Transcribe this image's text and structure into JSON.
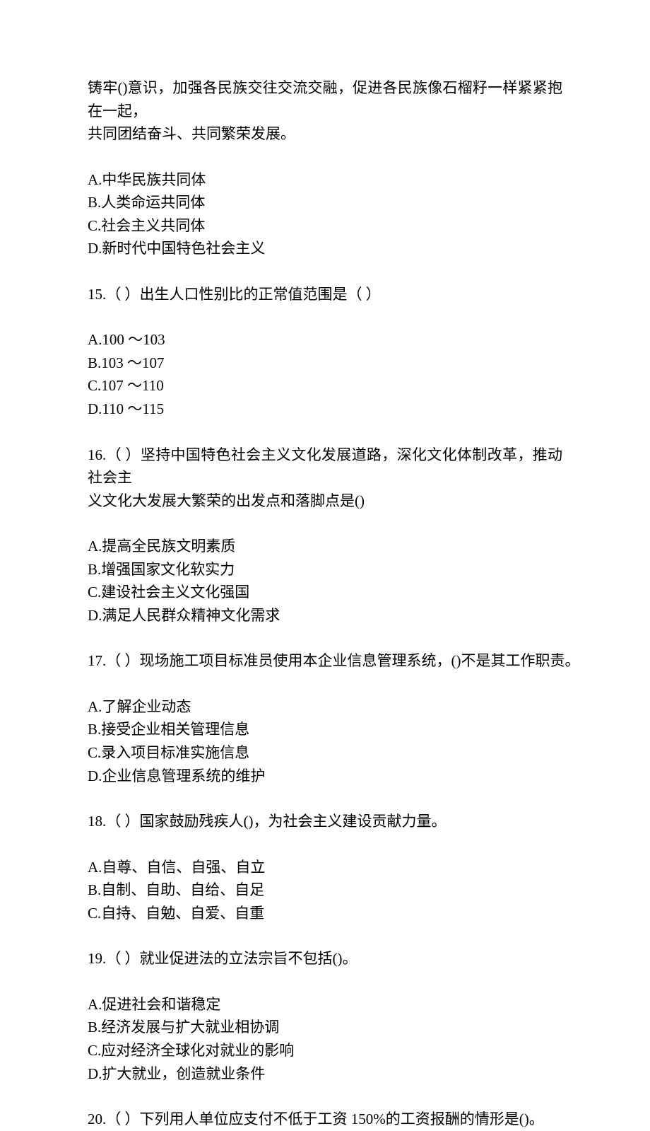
{
  "intro_lines": [
    "铸牢()意识，加强各民族交往交流交融，促进各民族像石榴籽一样紧紧抱在一起，",
    "共同团结奋斗、共同繁荣发展。"
  ],
  "intro_options": [
    "A.中华民族共同体",
    "B.人类命运共同体",
    "C.社会主义共同体",
    "D.新时代中国特色社会主义"
  ],
  "q15": {
    "text": "15.（ ）出生人口性别比的正常值范围是（ ）",
    "options": [
      "A.100 ～103",
      "B.103 ～107",
      "C.107 ～110",
      "D.110 ～115"
    ]
  },
  "q16": {
    "lines": [
      "16.（ ）坚持中国特色社会主义文化发展道路，深化文化体制改革，推动社会主",
      "义文化大发展大繁荣的出发点和落脚点是()"
    ],
    "options": [
      "A.提高全民族文明素质",
      "B.增强国家文化软实力",
      "C.建设社会主义文化强国",
      "D.满足人民群众精神文化需求"
    ]
  },
  "q17": {
    "text": "17.（ ）现场施工项目标准员使用本企业信息管理系统，()不是其工作职责。",
    "options": [
      "A.了解企业动态",
      "B.接受企业相关管理信息",
      "C.录入项目标准实施信息",
      "D.企业信息管理系统的维护"
    ]
  },
  "q18": {
    "text": "18.（ ）国家鼓励残疾人()，为社会主义建设贡献力量。",
    "options": [
      "A.自尊、自信、自强、自立",
      "B.自制、自助、自给、自足",
      "C.自持、自勉、自爱、自重"
    ]
  },
  "q19": {
    "text": "19.（ ）就业促进法的立法宗旨不包括()。",
    "options": [
      "A.促进社会和谐稳定",
      "B.经济发展与扩大就业相协调",
      "C.应对经济全球化对就业的影响",
      "D.扩大就业，创造就业条件"
    ]
  },
  "q20": {
    "text": "20.（ ）下列用人单位应支付不低于工资 150%的工资报酬的情形是()。"
  }
}
